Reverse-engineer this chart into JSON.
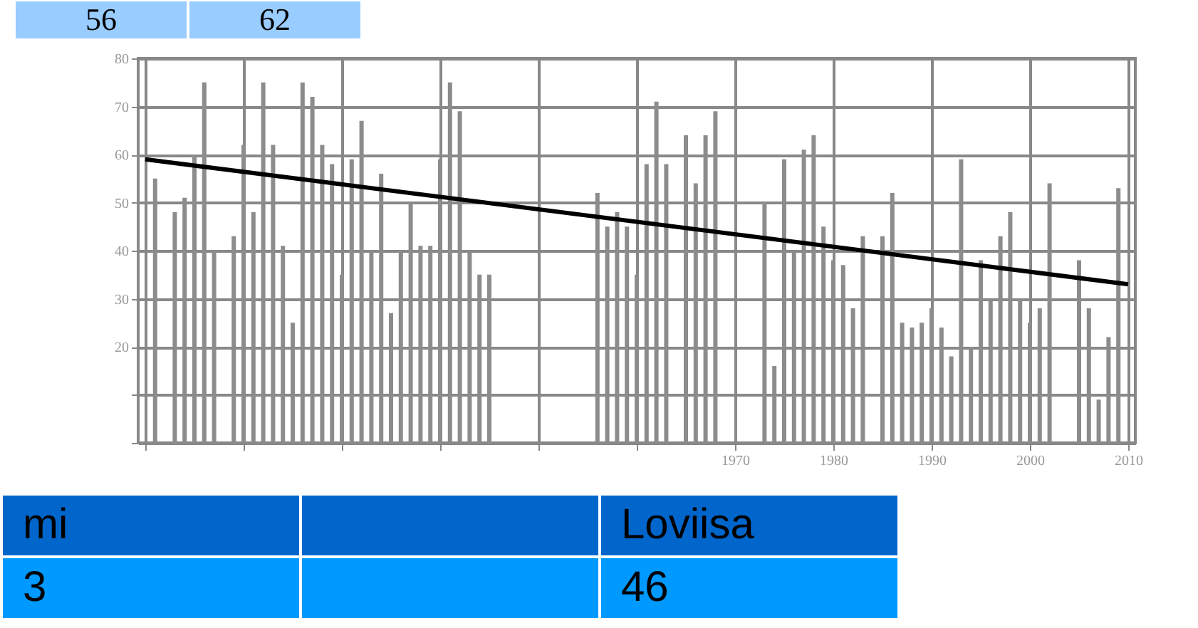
{
  "chart_data": {
    "type": "bar",
    "series": [
      {
        "color": "#8c8c8c",
        "x": [
          1911,
          1913,
          1914,
          1915,
          1916,
          1917,
          1919,
          1920,
          1921,
          1922,
          1923,
          1924,
          1925,
          1926,
          1927,
          1928,
          1929,
          1930,
          1931,
          1932,
          1933,
          1934,
          1935,
          1936,
          1937,
          1938,
          1939,
          1940,
          1941,
          1942,
          1943,
          1944,
          1945,
          1956,
          1957,
          1958,
          1959,
          1960,
          1961,
          1962,
          1963,
          1965,
          1966,
          1967,
          1968,
          1973,
          1974,
          1975,
          1976,
          1977,
          1978,
          1979,
          1980,
          1981,
          1982,
          1983,
          1985,
          1986,
          1987,
          1988,
          1989,
          1990,
          1991,
          1992,
          1993,
          1994,
          1995,
          1996,
          1997,
          1998,
          1999,
          2000,
          2001,
          2002,
          2005,
          2006,
          2007,
          2008,
          2009
        ],
        "values": [
          55,
          48,
          51,
          60,
          75,
          40,
          43,
          62,
          48,
          75,
          62,
          41,
          25,
          75,
          72,
          62,
          58,
          35,
          59,
          67,
          40,
          56,
          27,
          40,
          50,
          41,
          41,
          59,
          75,
          69,
          40,
          35,
          35,
          52,
          45,
          48,
          45,
          35,
          58,
          71,
          58,
          64,
          54,
          64,
          69,
          50,
          16,
          59,
          40,
          61,
          64,
          45,
          38,
          37,
          28,
          43,
          43,
          52,
          25,
          24,
          25,
          28,
          24,
          18,
          59,
          20,
          38,
          30,
          43,
          48,
          30,
          25,
          28,
          54,
          38,
          28,
          9,
          22,
          53
        ]
      },
      {
        "type": "line",
        "color": "#000000",
        "x": [
          1910,
          2010
        ],
        "values": [
          59,
          33
        ]
      }
    ],
    "xlim": [
      1910,
      2010
    ],
    "xticks": [
      {
        "value": 1910,
        "label": null
      },
      {
        "value": 1920,
        "label": null
      },
      {
        "value": 1930,
        "label": null
      },
      {
        "value": 1940,
        "label": null
      },
      {
        "value": 1950,
        "label": null
      },
      {
        "value": 1960,
        "label": null
      },
      1970,
      1980,
      1990,
      2000,
      2010
    ],
    "ylim": [
      0,
      80
    ],
    "yticks": [
      {
        "value": 0,
        "label": null
      },
      {
        "value": 10,
        "label": null
      },
      20,
      30,
      40,
      50,
      60,
      70,
      80
    ],
    "grid": true,
    "annotations": [
      "56",
      "62",
      "mi",
      "Loviisa",
      "3",
      "46"
    ]
  }
}
